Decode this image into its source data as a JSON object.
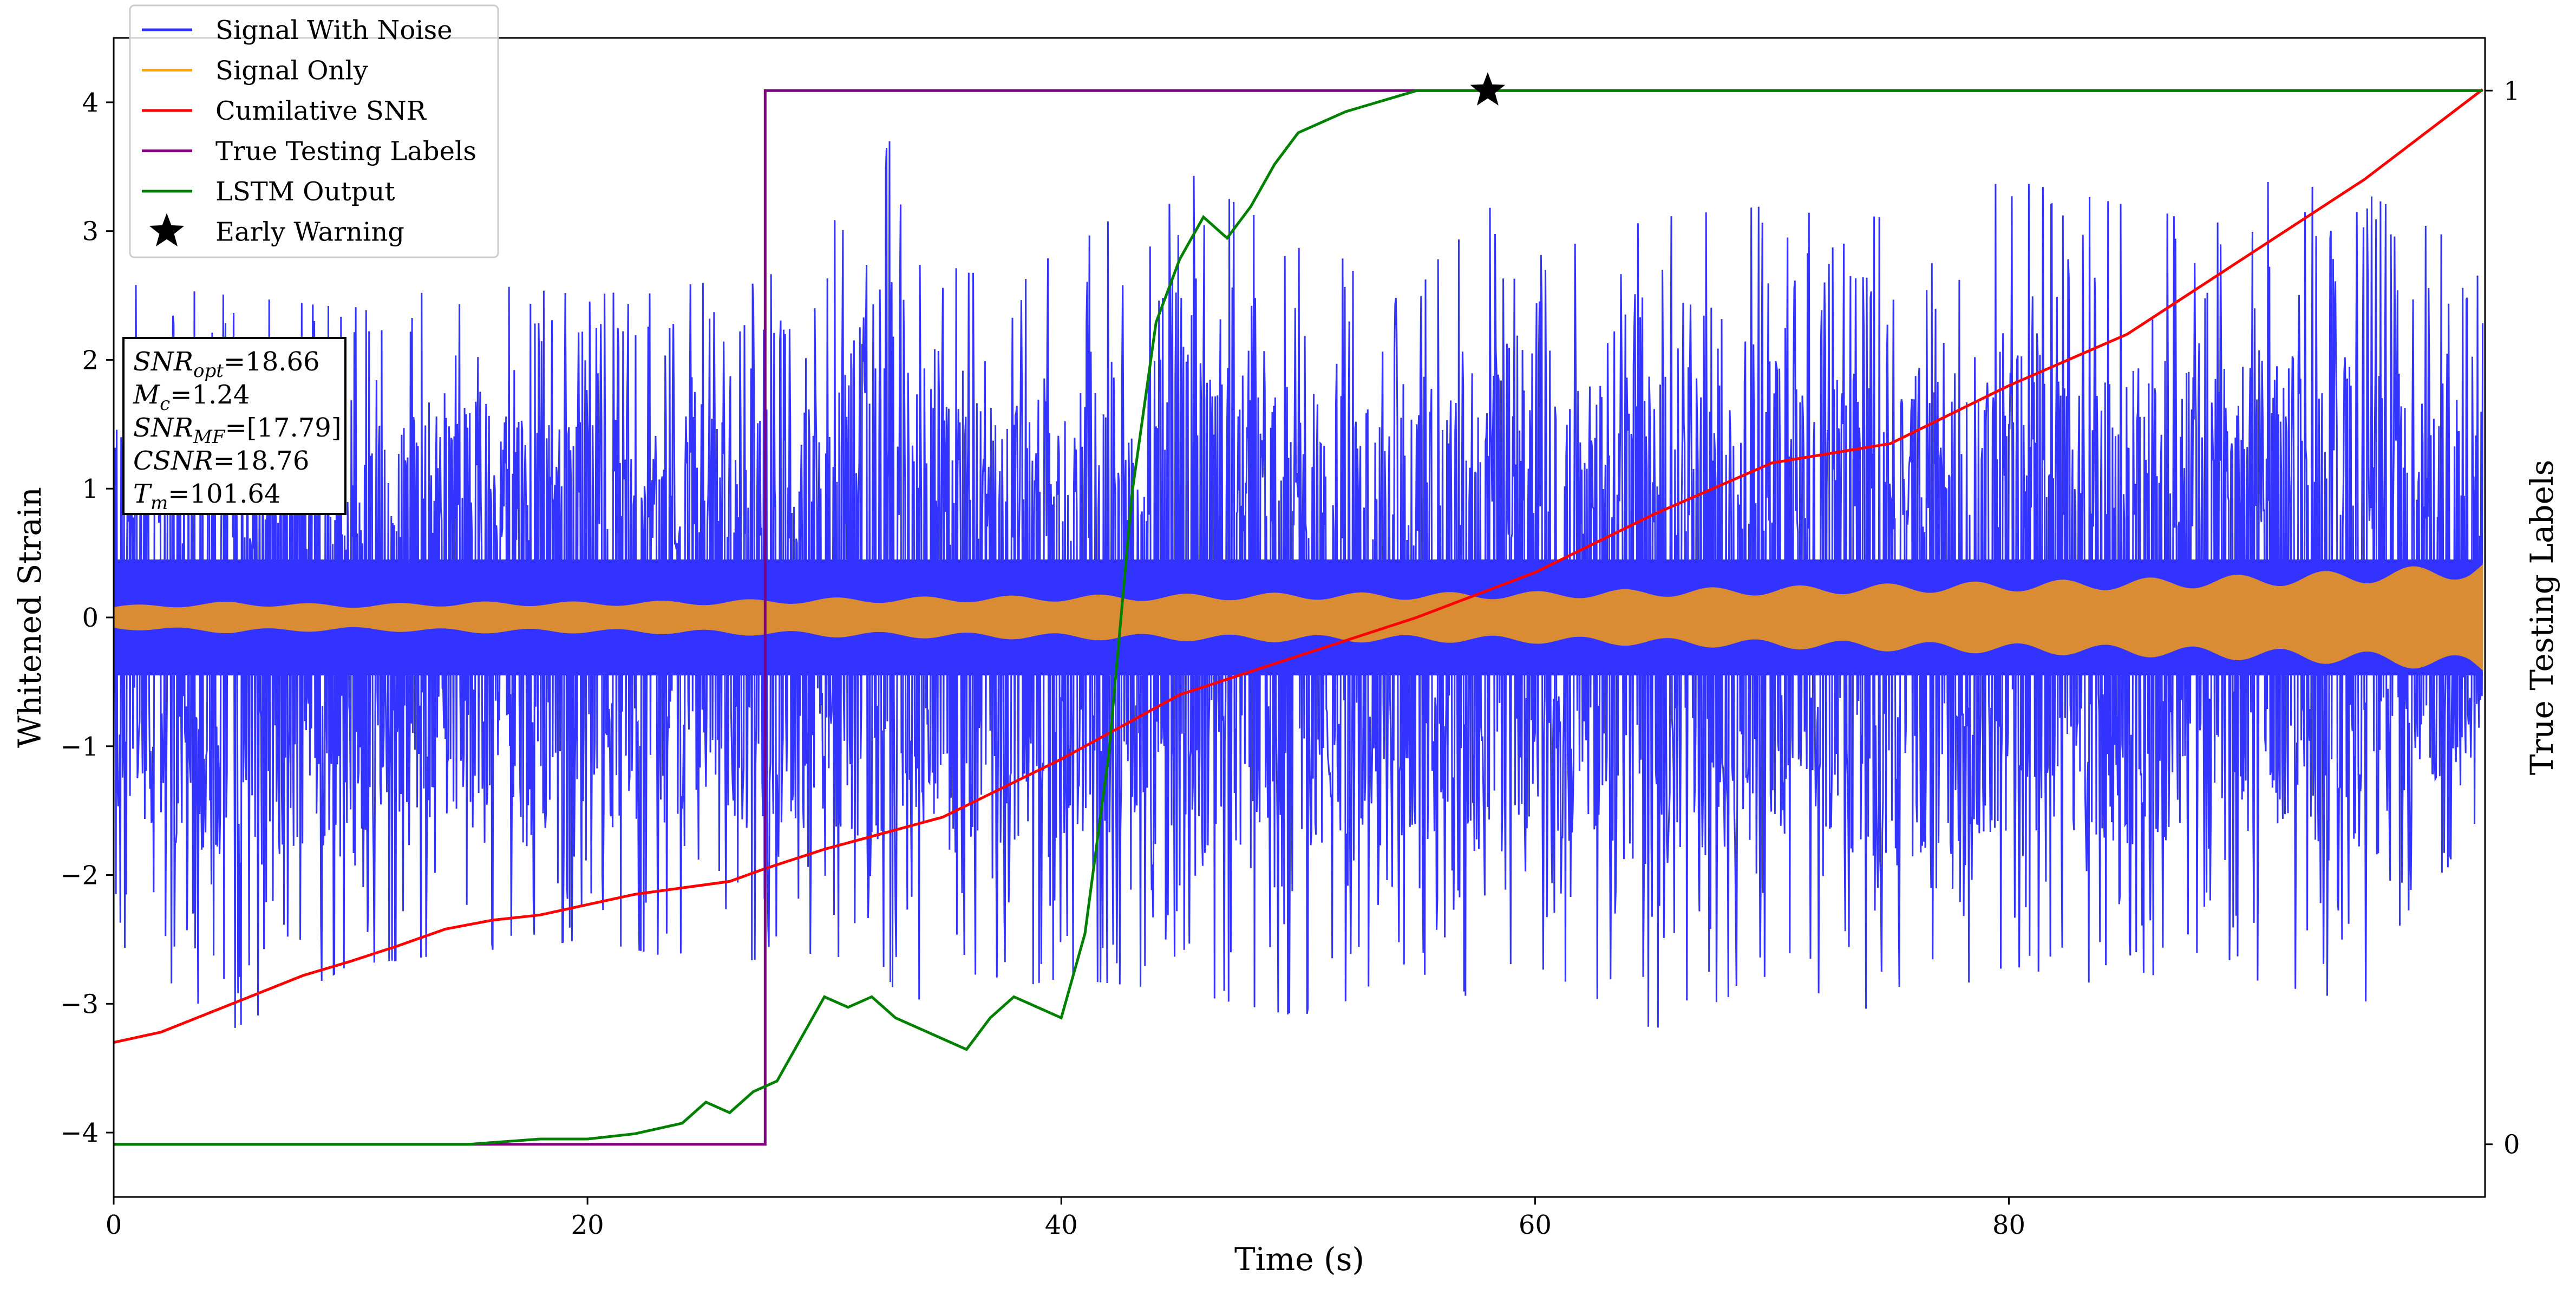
{
  "chart_data": {
    "type": "line",
    "xlabel": "Time (s)",
    "ylabel": "Whitened Strain",
    "ylabel_right": "True Testing Labels",
    "xlim": [
      0,
      100.1
    ],
    "ylim": [
      -4.5,
      4.5
    ],
    "ylim_right": [
      -0.05,
      1.05
    ],
    "xticks": [
      0,
      20,
      40,
      60,
      80
    ],
    "xtick_labels": [
      "0",
      "20",
      "40",
      "60",
      "80"
    ],
    "yticks": [
      -4,
      -3,
      -2,
      -1,
      0,
      1,
      2,
      3,
      4
    ],
    "ytick_labels": [
      "−4",
      "−3",
      "−2",
      "−1",
      "0",
      "1",
      "2",
      "3",
      "4"
    ],
    "yticks_right": [
      0,
      1
    ],
    "ytick_labels_right": [
      "0",
      "1"
    ],
    "grid": false,
    "legend_position": "top-left",
    "colors": {
      "noise": "#3333ff",
      "signal": "#d98c33",
      "signal_legend": "#ffa500",
      "csnr": "#ff0000",
      "labels": "#800080",
      "lstm": "#008000",
      "star": "#000000"
    },
    "series": [
      {
        "name": "Signal With Noise",
        "axis": "left",
        "style": "noise-band",
        "x": [
          0,
          5,
          10,
          15,
          20,
          25,
          30,
          32,
          35,
          40,
          45,
          50,
          55,
          58,
          60,
          65,
          70,
          75,
          80,
          85,
          90,
          95,
          100
        ],
        "upper": [
          2.6,
          2.5,
          2.4,
          2.6,
          2.5,
          2.6,
          2.8,
          4.1,
          2.7,
          2.8,
          3.5,
          2.9,
          2.6,
          3.2,
          2.8,
          3.1,
          3.2,
          3.1,
          3.4,
          3.2,
          3.4,
          3.3,
          2.8
        ],
        "lower": [
          -2.5,
          -3.2,
          -2.7,
          -2.6,
          -2.5,
          -2.7,
          -2.6,
          -2.9,
          -3.0,
          -2.8,
          -2.9,
          -3.1,
          -2.8,
          -3.1,
          -2.7,
          -3.2,
          -2.8,
          -3.1,
          -2.7,
          -2.9,
          -2.8,
          -3.0,
          -1.5
        ],
        "abs_envelope": 0.45
      },
      {
        "name": "Signal Only",
        "axis": "left",
        "style": "envelope",
        "x": [
          0,
          5,
          10,
          15,
          20,
          25,
          30,
          35,
          40,
          45,
          50,
          55,
          60,
          65,
          70,
          75,
          80,
          85,
          90,
          95,
          99.5,
          100
        ],
        "amplitude": [
          0.09,
          0.12,
          0.1,
          0.12,
          0.12,
          0.13,
          0.15,
          0.16,
          0.17,
          0.18,
          0.19,
          0.19,
          0.2,
          0.22,
          0.24,
          0.26,
          0.28,
          0.3,
          0.33,
          0.37,
          0.42,
          0.45
        ]
      },
      {
        "name": "Cumilative SNR",
        "axis": "left",
        "style": "line",
        "x": [
          0,
          2,
          5,
          8,
          10,
          12,
          14,
          16,
          18,
          20,
          22,
          24,
          26,
          27.5,
          30,
          35,
          40,
          45,
          50,
          55,
          60,
          65,
          70,
          75,
          80,
          85,
          90,
          95,
          100
        ],
        "y": [
          -3.3,
          -3.22,
          -3.0,
          -2.78,
          -2.67,
          -2.55,
          -2.42,
          -2.35,
          -2.31,
          -2.23,
          -2.15,
          -2.1,
          -2.05,
          -1.95,
          -1.8,
          -1.55,
          -1.1,
          -0.6,
          -0.3,
          0.0,
          0.35,
          0.8,
          1.2,
          1.35,
          1.8,
          2.2,
          2.8,
          3.4,
          4.1
        ]
      },
      {
        "name": "True Testing Labels",
        "axis": "right",
        "style": "step",
        "x": [
          0,
          27.5,
          27.5,
          100
        ],
        "y": [
          0,
          0,
          1,
          1
        ]
      },
      {
        "name": "LSTM Output",
        "axis": "right",
        "style": "line",
        "x": [
          0,
          15,
          18,
          20,
          22,
          24,
          25,
          26,
          27,
          28,
          29,
          30,
          31,
          32,
          33,
          34,
          35,
          36,
          37,
          38,
          39,
          40,
          41,
          42,
          43,
          44,
          45,
          46,
          47,
          48,
          49,
          50,
          52,
          55,
          58,
          100
        ],
        "y": [
          0,
          0.0,
          0.005,
          0.005,
          0.01,
          0.02,
          0.04,
          0.03,
          0.05,
          0.06,
          0.1,
          0.14,
          0.13,
          0.14,
          0.12,
          0.11,
          0.1,
          0.09,
          0.12,
          0.14,
          0.13,
          0.12,
          0.2,
          0.37,
          0.62,
          0.78,
          0.84,
          0.88,
          0.86,
          0.89,
          0.93,
          0.96,
          0.98,
          1.0,
          1.0,
          1.0
        ]
      }
    ],
    "markers": [
      {
        "name": "Early Warning",
        "axis": "right",
        "shape": "star",
        "x": 58,
        "y": 1.0
      }
    ],
    "legend": [
      {
        "label": "Signal With Noise",
        "key": "noise",
        "kind": "line"
      },
      {
        "label": "Signal Only",
        "key": "signal_legend",
        "kind": "line"
      },
      {
        "label": "Cumilative SNR",
        "key": "csnr",
        "kind": "line"
      },
      {
        "label": "True Testing Labels",
        "key": "labels",
        "kind": "line"
      },
      {
        "label": "LSTM Output",
        "key": "lstm",
        "kind": "line"
      },
      {
        "label": "Early Warning",
        "key": "star",
        "kind": "star"
      }
    ],
    "annotation": {
      "position": "left",
      "lines": [
        {
          "base": "SNR",
          "sub": "opt",
          "rest": "=18.66"
        },
        {
          "base": "M",
          "sub": "c",
          "rest": "=1.24"
        },
        {
          "base": "SNR",
          "sub": "MF",
          "rest": "=[17.79]"
        },
        {
          "base": "CSNR",
          "sub": "",
          "rest": "=18.76"
        },
        {
          "base": "T",
          "sub": "m",
          "rest": "=101.64"
        }
      ]
    }
  }
}
